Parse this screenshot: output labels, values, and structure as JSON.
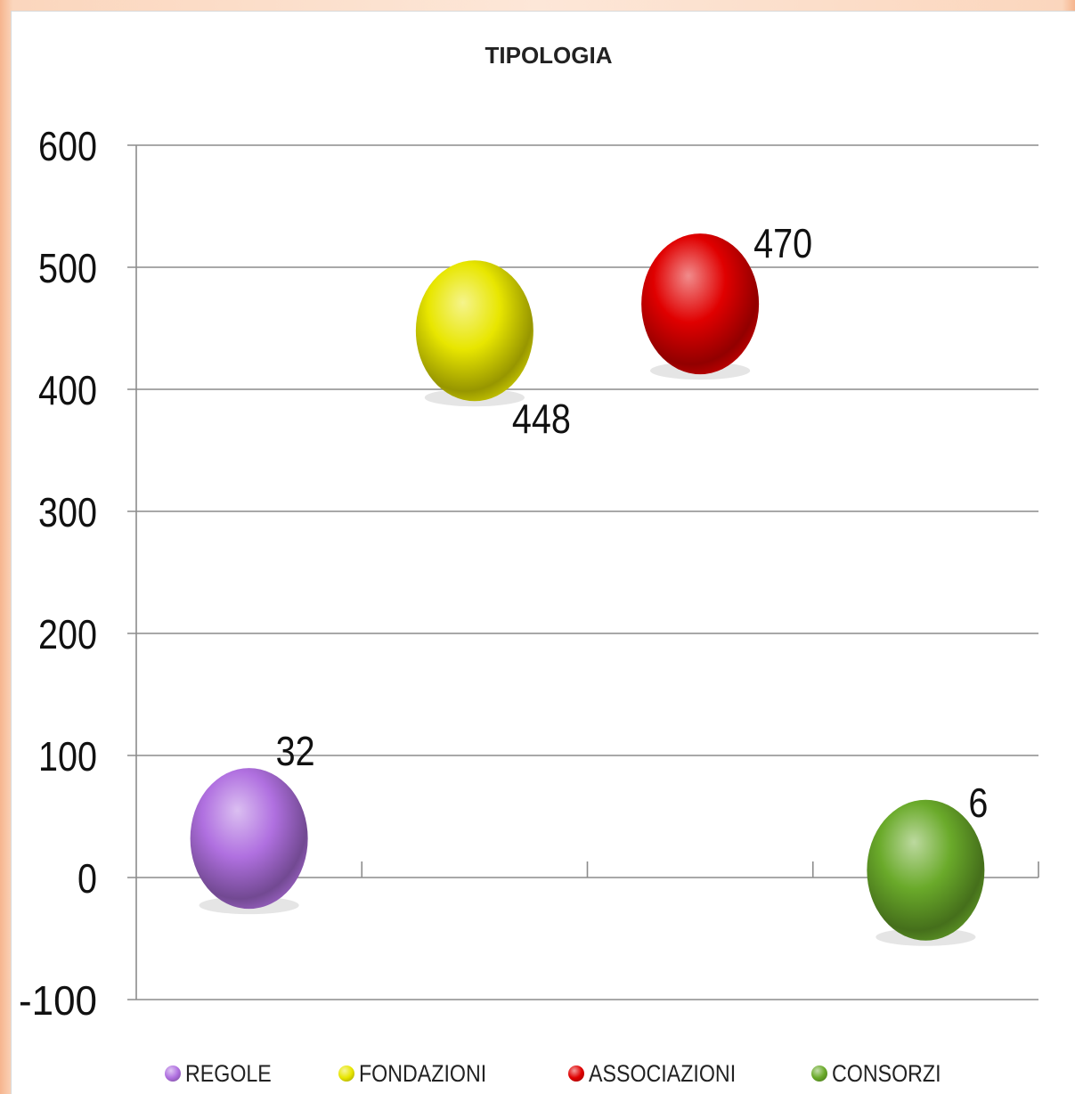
{
  "chart_data": {
    "type": "scatter",
    "title": "TIPOLOGIA",
    "xlabel": "",
    "ylabel": "",
    "ylim": [
      -100,
      600
    ],
    "yticks": [
      "600",
      "500",
      "400",
      "300",
      "200",
      "100",
      "0",
      "-100"
    ],
    "grid": true,
    "legend_position": "bottom",
    "series": [
      {
        "name": "REGOLE",
        "x": 1,
        "value": 32,
        "label": "32",
        "color": "#b070e0"
      },
      {
        "name": "FONDAZIONI",
        "x": 2,
        "value": 448,
        "label": "448",
        "color": "#e8e600"
      },
      {
        "name": "ASSOCIAZIONI",
        "x": 3,
        "value": 470,
        "label": "470",
        "color": "#e00000"
      },
      {
        "name": "CONSORZI",
        "x": 4,
        "value": 6,
        "label": "6",
        "color": "#6aaa2a"
      }
    ]
  }
}
